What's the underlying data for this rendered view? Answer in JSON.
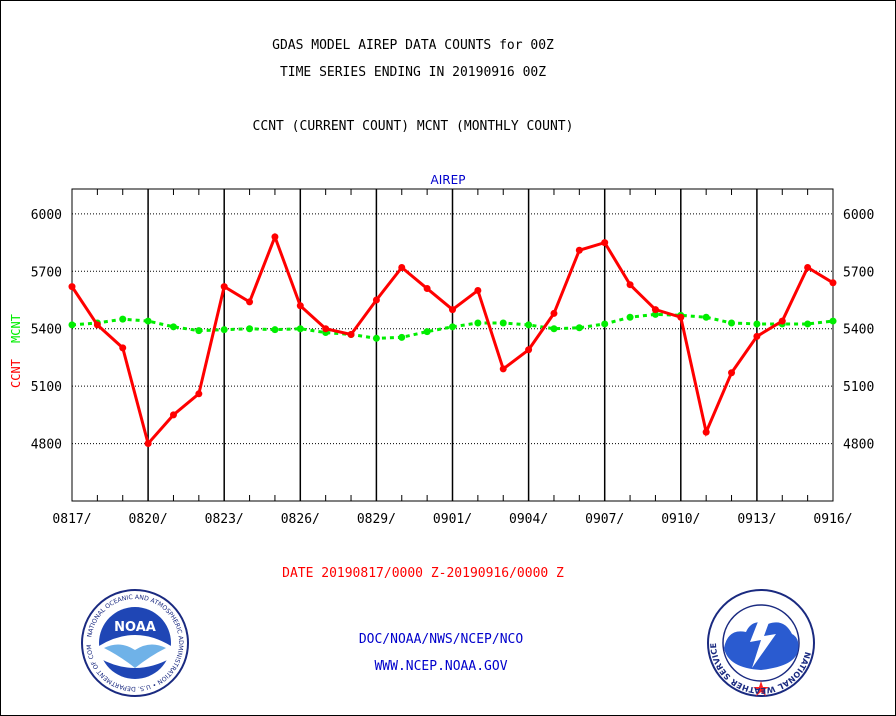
{
  "header": {
    "title_line1": "GDAS MODEL AIREP DATA COUNTS for 00Z",
    "title_line2": "TIME SERIES ENDING IN 20190916 00Z",
    "subtitle": "CCNT (CURRENT COUNT) MCNT (MONTHLY COUNT)"
  },
  "colors": {
    "ccnt": "#ff0000",
    "mcnt": "#00ee00",
    "blue_text": "#0000cc",
    "grid": "#000000"
  },
  "chart_data": {
    "type": "line",
    "title": "AIREP",
    "ylabel_ccnt": "CCNT",
    "ylabel_mcnt": "MCNT",
    "date_range_label": "DATE 20190817/0000 Z-20190916/0000 Z",
    "ylim": [
      4500,
      6130
    ],
    "yticks": [
      4800,
      5100,
      5400,
      5700,
      6000
    ],
    "ytick_labels": [
      "4800",
      "5100",
      "5400",
      "5700",
      "6000"
    ],
    "xtick_labels": [
      "0817/",
      "0820/",
      "0823/",
      "0826/",
      "0829/",
      "0901/",
      "0904/",
      "0907/",
      "0910/",
      "0913/",
      "0916/"
    ],
    "x": [
      "0817",
      "0818",
      "0819",
      "0820",
      "0821",
      "0822",
      "0823",
      "0824",
      "0825",
      "0826",
      "0827",
      "0828",
      "0829",
      "0830",
      "0831",
      "0901",
      "0902",
      "0903",
      "0904",
      "0905",
      "0906",
      "0907",
      "0908",
      "0909",
      "0910",
      "0911",
      "0912",
      "0913",
      "0914",
      "0915",
      "0916"
    ],
    "grid": true,
    "series": [
      {
        "name": "CCNT",
        "values": [
          5620,
          5420,
          5300,
          4800,
          4950,
          5060,
          5620,
          5540,
          5880,
          5520,
          5400,
          5370,
          5550,
          5720,
          5610,
          5500,
          5600,
          5190,
          5290,
          5480,
          5810,
          5850,
          5630,
          5500,
          5460,
          4860,
          5170,
          5360,
          5440,
          5720,
          5640
        ]
      },
      {
        "name": "MCNT",
        "values": [
          5420,
          5430,
          5450,
          5440,
          5410,
          5390,
          5395,
          5400,
          5395,
          5400,
          5380,
          5370,
          5350,
          5355,
          5385,
          5410,
          5430,
          5430,
          5420,
          5400,
          5405,
          5425,
          5460,
          5475,
          5470,
          5460,
          5430,
          5425,
          5425,
          5425,
          5440
        ]
      }
    ]
  },
  "footer": {
    "org_line": "DOC/NOAA/NWS/NCEP/NCO",
    "url": "WWW.NCEP.NOAA.GOV",
    "noaa_logo_text": "NOAA",
    "noaa_ring_text": "NATIONAL OCEANIC AND ATMOSPHERIC ADMINISTRATION • U.S. DEPARTMENT OF COMMERCE •",
    "nws_ring_text": "NATIONAL WEATHER SERVICE"
  }
}
